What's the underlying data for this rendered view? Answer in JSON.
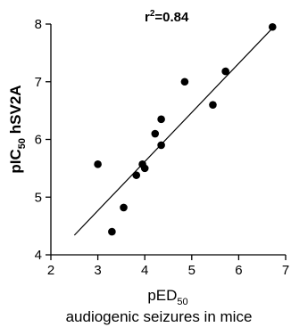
{
  "chart_data": {
    "type": "scatter",
    "title": "",
    "annotation": {
      "prefix": "r",
      "superscript": "2",
      "value": "=0.84"
    },
    "xlabel": {
      "main": "pED",
      "subscript": "50",
      "second_line": "audiogenic seizures in mice"
    },
    "ylabel": {
      "main": "pIC",
      "subscript": "50",
      "suffix": " hSV2A"
    },
    "xlim": [
      2,
      7
    ],
    "ylim": [
      4,
      8
    ],
    "xticks": [
      "2",
      "3",
      "4",
      "5",
      "6",
      "7"
    ],
    "yticks": [
      "4",
      "5",
      "6",
      "7",
      "8"
    ],
    "points": [
      {
        "x": 3.0,
        "y": 5.57
      },
      {
        "x": 3.3,
        "y": 4.4
      },
      {
        "x": 3.55,
        "y": 4.82
      },
      {
        "x": 3.82,
        "y": 5.38
      },
      {
        "x": 3.95,
        "y": 5.57
      },
      {
        "x": 4.0,
        "y": 5.5
      },
      {
        "x": 4.22,
        "y": 6.1
      },
      {
        "x": 4.35,
        "y": 5.9
      },
      {
        "x": 4.35,
        "y": 6.35
      },
      {
        "x": 4.85,
        "y": 7.0
      },
      {
        "x": 5.45,
        "y": 6.6
      },
      {
        "x": 5.72,
        "y": 7.18
      },
      {
        "x": 6.72,
        "y": 7.95
      }
    ],
    "regression_line": {
      "x": [
        2.5,
        6.72
      ],
      "y": [
        4.34,
        7.93
      ]
    },
    "colors": {
      "points": "#000000",
      "axes": "#000000",
      "line": "#000000"
    }
  }
}
